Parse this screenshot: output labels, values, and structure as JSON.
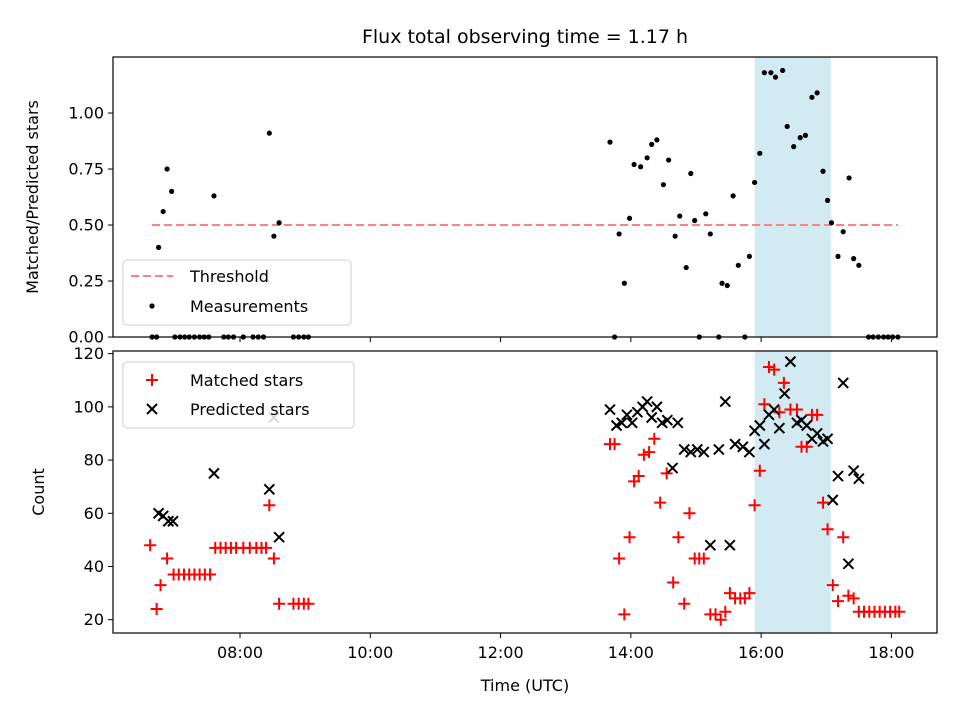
{
  "colors": {
    "threshold": "#ff8080",
    "measurement": "#000000",
    "matched": "#ff0000",
    "predicted": "#000000",
    "span": "#add8e6"
  },
  "chart_data": [
    {
      "type": "scatter",
      "title": "Flux total observing time = 1.17 h",
      "xlabel": "",
      "ylabel": "Matched/Predicted stars",
      "ylim": [
        0,
        1.25
      ],
      "xlim_hours": [
        6.05,
        18.7
      ],
      "yticks": [
        "0.00",
        "0.25",
        "0.50",
        "0.75",
        "1.00"
      ],
      "ytick_values": [
        0,
        0.25,
        0.5,
        0.75,
        1.0
      ],
      "highlight_span_hours": [
        15.9,
        17.07
      ],
      "threshold": {
        "label": "Threshold",
        "y": 0.5,
        "x_range": [
          6.65,
          18.1
        ]
      },
      "legend": {
        "placement": "lower-left",
        "entries": [
          "Threshold",
          "Measurements"
        ]
      },
      "series": [
        {
          "name": "Measurements",
          "points": [
            [
              6.65,
              0
            ],
            [
              6.75,
              0.4
            ],
            [
              6.82,
              0.56
            ],
            [
              6.88,
              0.75
            ],
            [
              6.95,
              0.65
            ],
            [
              6.72,
              0
            ],
            [
              7.0,
              0
            ],
            [
              7.08,
              0
            ],
            [
              7.15,
              0
            ],
            [
              7.22,
              0
            ],
            [
              7.3,
              0
            ],
            [
              7.38,
              0
            ],
            [
              7.45,
              0
            ],
            [
              7.52,
              0
            ],
            [
              7.6,
              0.63
            ],
            [
              7.75,
              0
            ],
            [
              7.82,
              0
            ],
            [
              7.9,
              0
            ],
            [
              8.05,
              0
            ],
            [
              8.2,
              0
            ],
            [
              8.28,
              0
            ],
            [
              8.36,
              0
            ],
            [
              8.45,
              0.91
            ],
            [
              8.52,
              0.45
            ],
            [
              8.6,
              0.51
            ],
            [
              8.82,
              0
            ],
            [
              8.9,
              0
            ],
            [
              8.98,
              0
            ],
            [
              9.05,
              0
            ],
            [
              13.68,
              0.87
            ],
            [
              13.75,
              0
            ],
            [
              13.82,
              0.46
            ],
            [
              13.9,
              0.24
            ],
            [
              13.98,
              0.53
            ],
            [
              14.05,
              0.77
            ],
            [
              14.15,
              0.76
            ],
            [
              14.25,
              0.8
            ],
            [
              14.32,
              0.86
            ],
            [
              14.4,
              0.88
            ],
            [
              14.5,
              0.68
            ],
            [
              14.58,
              0.79
            ],
            [
              14.68,
              0.45
            ],
            [
              14.75,
              0.54
            ],
            [
              14.85,
              0.31
            ],
            [
              14.92,
              0.73
            ],
            [
              14.98,
              0.52
            ],
            [
              15.05,
              0
            ],
            [
              15.15,
              0.55
            ],
            [
              15.22,
              0.46
            ],
            [
              15.35,
              0
            ],
            [
              15.4,
              0.24
            ],
            [
              15.48,
              0.23
            ],
            [
              15.57,
              0.63
            ],
            [
              15.65,
              0.32
            ],
            [
              15.75,
              0
            ],
            [
              15.82,
              0.36
            ],
            [
              15.9,
              0.69
            ],
            [
              15.98,
              0.82
            ],
            [
              16.05,
              1.18
            ],
            [
              16.15,
              1.18
            ],
            [
              16.22,
              1.16
            ],
            [
              16.33,
              1.19
            ],
            [
              16.4,
              0.94
            ],
            [
              16.5,
              0.85
            ],
            [
              16.6,
              0.89
            ],
            [
              16.68,
              0.9
            ],
            [
              16.78,
              1.07
            ],
            [
              16.86,
              1.09
            ],
            [
              16.95,
              0.74
            ],
            [
              17.02,
              0.61
            ],
            [
              17.08,
              0.51
            ],
            [
              17.18,
              0.36
            ],
            [
              17.26,
              0.47
            ],
            [
              17.35,
              0.71
            ],
            [
              17.42,
              0.35
            ],
            [
              17.5,
              0.32
            ],
            [
              17.65,
              0
            ],
            [
              17.72,
              0
            ],
            [
              17.8,
              0
            ],
            [
              17.88,
              0
            ],
            [
              17.95,
              0
            ],
            [
              18.02,
              0
            ],
            [
              18.1,
              0
            ]
          ]
        }
      ]
    },
    {
      "type": "scatter",
      "title": "",
      "xlabel": "Time (UTC)",
      "ylabel": "Count",
      "ylim": [
        15,
        121
      ],
      "xlim_hours": [
        6.05,
        18.7
      ],
      "yticks": [
        "20",
        "40",
        "60",
        "80",
        "100",
        "120"
      ],
      "ytick_values": [
        20,
        40,
        60,
        80,
        100,
        120
      ],
      "xticks": [
        "08:00",
        "10:00",
        "12:00",
        "14:00",
        "16:00",
        "18:00"
      ],
      "xtick_values": [
        8,
        10,
        12,
        14,
        16,
        18
      ],
      "highlight_span_hours": [
        15.9,
        17.07
      ],
      "legend": {
        "placement": "upper-left",
        "entries": [
          "Matched stars",
          "Predicted stars"
        ]
      },
      "series": [
        {
          "name": "Matched stars",
          "marker": "plus",
          "points": [
            [
              6.62,
              48
            ],
            [
              6.72,
              24
            ],
            [
              6.78,
              33
            ],
            [
              6.88,
              43
            ],
            [
              6.98,
              37
            ],
            [
              7.06,
              37
            ],
            [
              7.14,
              37
            ],
            [
              7.22,
              37
            ],
            [
              7.3,
              37
            ],
            [
              7.38,
              37
            ],
            [
              7.46,
              37
            ],
            [
              7.54,
              37
            ],
            [
              7.62,
              47
            ],
            [
              7.7,
              47
            ],
            [
              7.78,
              47
            ],
            [
              7.86,
              47
            ],
            [
              7.94,
              47
            ],
            [
              8.05,
              47
            ],
            [
              8.15,
              47
            ],
            [
              8.25,
              47
            ],
            [
              8.33,
              47
            ],
            [
              8.4,
              47
            ],
            [
              8.45,
              63
            ],
            [
              8.52,
              43
            ],
            [
              8.6,
              26
            ],
            [
              8.82,
              26
            ],
            [
              8.9,
              26
            ],
            [
              8.98,
              26
            ],
            [
              9.05,
              26
            ],
            [
              13.68,
              86
            ],
            [
              13.75,
              86
            ],
            [
              13.82,
              43
            ],
            [
              13.9,
              22
            ],
            [
              13.98,
              51
            ],
            [
              14.05,
              72
            ],
            [
              14.12,
              74
            ],
            [
              14.2,
              82
            ],
            [
              14.28,
              83
            ],
            [
              14.36,
              88
            ],
            [
              14.45,
              64
            ],
            [
              14.55,
              75
            ],
            [
              14.65,
              34
            ],
            [
              14.73,
              51
            ],
            [
              14.82,
              26
            ],
            [
              14.9,
              60
            ],
            [
              14.98,
              43
            ],
            [
              15.05,
              43
            ],
            [
              15.12,
              43
            ],
            [
              15.22,
              22
            ],
            [
              15.3,
              22
            ],
            [
              15.38,
              20
            ],
            [
              15.45,
              23
            ],
            [
              15.52,
              30
            ],
            [
              15.6,
              28
            ],
            [
              15.68,
              28
            ],
            [
              15.75,
              28
            ],
            [
              15.82,
              30
            ],
            [
              15.9,
              63
            ],
            [
              15.98,
              76
            ],
            [
              16.05,
              101
            ],
            [
              16.12,
              115
            ],
            [
              16.2,
              114
            ],
            [
              16.28,
              98
            ],
            [
              16.35,
              109
            ],
            [
              16.45,
              99
            ],
            [
              16.55,
              99
            ],
            [
              16.62,
              85
            ],
            [
              16.7,
              85
            ],
            [
              16.78,
              97
            ],
            [
              16.86,
              97
            ],
            [
              16.95,
              64
            ],
            [
              17.02,
              54
            ],
            [
              17.1,
              33
            ],
            [
              17.18,
              27
            ],
            [
              17.26,
              51
            ],
            [
              17.34,
              29
            ],
            [
              17.42,
              28
            ],
            [
              17.5,
              23
            ],
            [
              17.58,
              23
            ],
            [
              17.66,
              23
            ],
            [
              17.74,
              23
            ],
            [
              17.82,
              23
            ],
            [
              17.9,
              23
            ],
            [
              17.98,
              23
            ],
            [
              18.06,
              23
            ],
            [
              18.12,
              23
            ]
          ]
        },
        {
          "name": "Predicted stars",
          "marker": "x",
          "points": [
            [
              6.75,
              60
            ],
            [
              6.82,
              59
            ],
            [
              6.9,
              57
            ],
            [
              6.97,
              57
            ],
            [
              7.6,
              75
            ],
            [
              8.45,
              69
            ],
            [
              8.52,
              96
            ],
            [
              8.6,
              51
            ],
            [
              13.68,
              99
            ],
            [
              13.78,
              93
            ],
            [
              13.86,
              94
            ],
            [
              13.94,
              97
            ],
            [
              14.02,
              94
            ],
            [
              14.1,
              98
            ],
            [
              14.18,
              100
            ],
            [
              14.25,
              102
            ],
            [
              14.32,
              96
            ],
            [
              14.4,
              100
            ],
            [
              14.48,
              94
            ],
            [
              14.56,
              95
            ],
            [
              14.64,
              77
            ],
            [
              14.72,
              94
            ],
            [
              14.82,
              84
            ],
            [
              14.92,
              83
            ],
            [
              15.02,
              84
            ],
            [
              15.12,
              83
            ],
            [
              15.22,
              48
            ],
            [
              15.35,
              84
            ],
            [
              15.45,
              102
            ],
            [
              15.52,
              48
            ],
            [
              15.6,
              86
            ],
            [
              15.72,
              85
            ],
            [
              15.82,
              83
            ],
            [
              15.9,
              91
            ],
            [
              15.98,
              93
            ],
            [
              16.05,
              86
            ],
            [
              16.12,
              97
            ],
            [
              16.2,
              99
            ],
            [
              16.28,
              92
            ],
            [
              16.36,
              105
            ],
            [
              16.45,
              117
            ],
            [
              16.55,
              94
            ],
            [
              16.62,
              95
            ],
            [
              16.7,
              93
            ],
            [
              16.78,
              88
            ],
            [
              16.86,
              90
            ],
            [
              16.95,
              87
            ],
            [
              17.02,
              88
            ],
            [
              17.1,
              65
            ],
            [
              17.18,
              74
            ],
            [
              17.26,
              109
            ],
            [
              17.34,
              41
            ],
            [
              17.42,
              76
            ],
            [
              17.5,
              73
            ]
          ]
        }
      ]
    }
  ]
}
